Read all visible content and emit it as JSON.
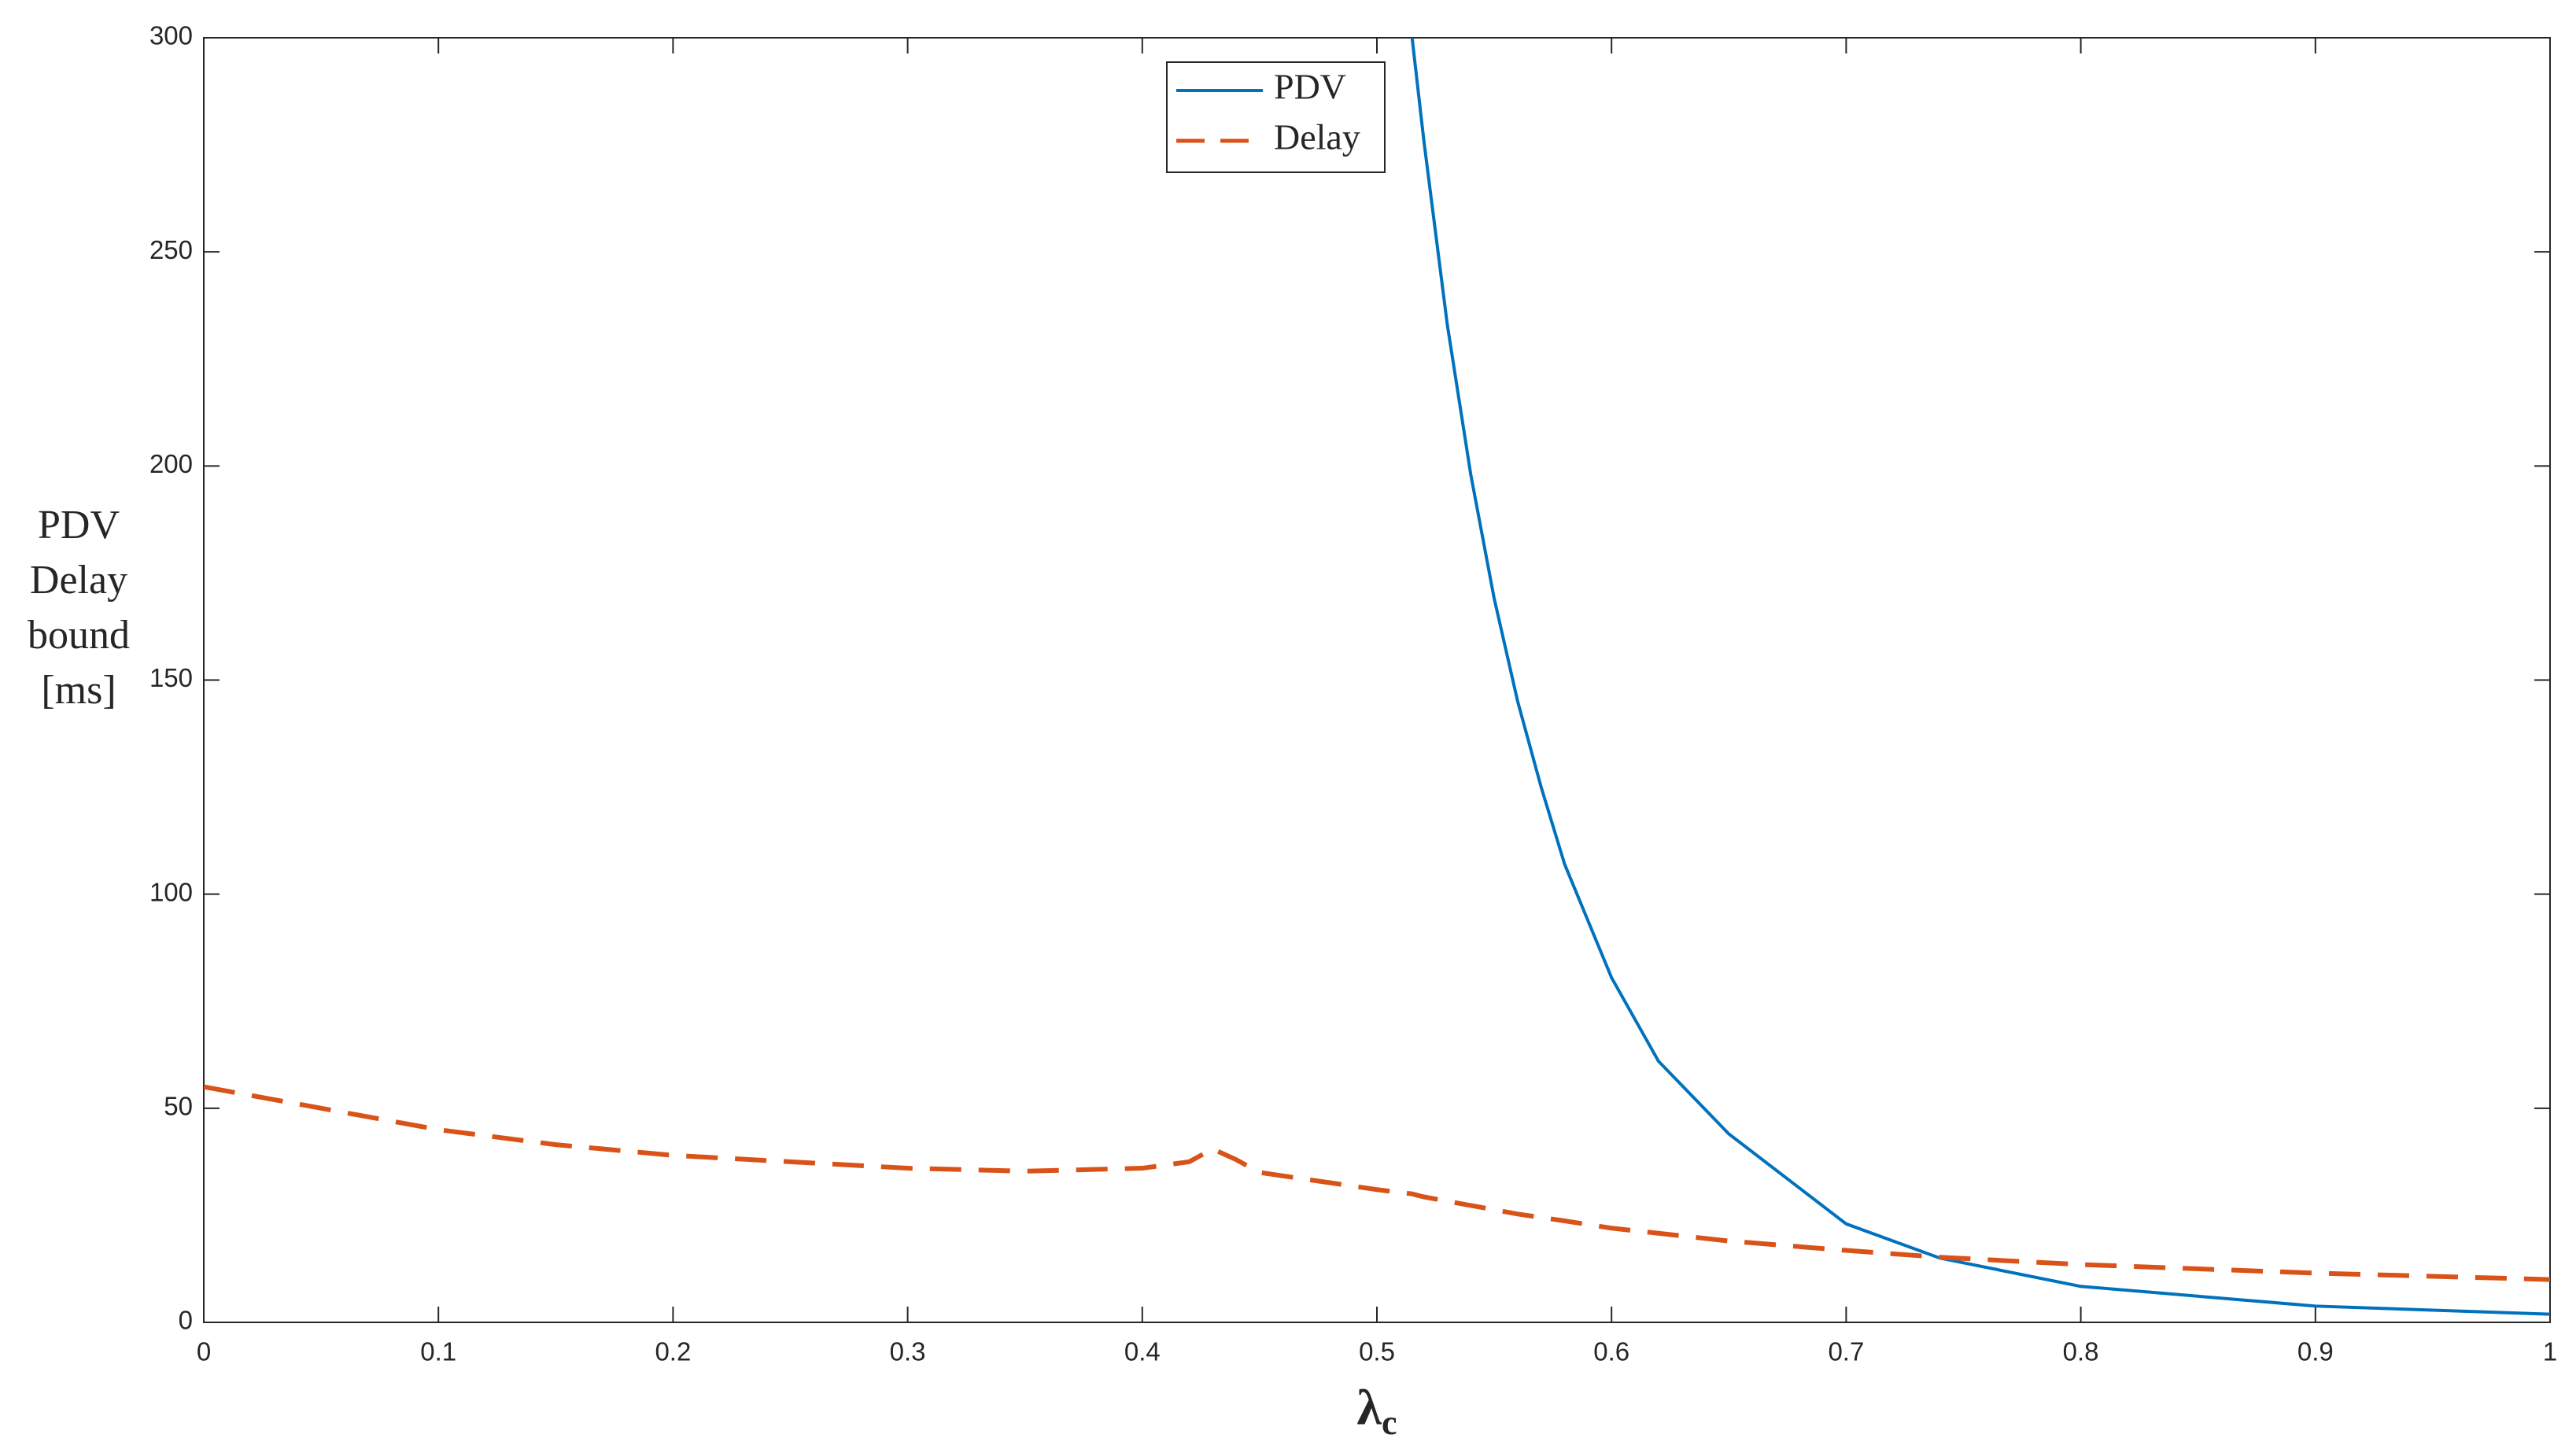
{
  "chart_data": {
    "type": "line",
    "ylabel": [
      "PDV",
      "Delay",
      "bound",
      "[ms]"
    ],
    "xlabel": "λ",
    "xlabel_subscript": "c",
    "x": [
      0,
      0.05,
      0.1,
      0.15,
      0.2,
      0.25,
      0.3,
      0.35,
      0.4,
      0.42,
      0.43,
      0.44,
      0.45,
      0.5,
      0.515,
      0.52,
      0.53,
      0.54,
      0.55,
      0.56,
      0.57,
      0.58,
      0.6,
      0.62,
      0.65,
      0.7,
      0.74,
      0.8,
      0.9,
      1.0
    ],
    "series": [
      {
        "name": "PDV",
        "color": "#0072bd",
        "dash": "solid",
        "values": [
          null,
          null,
          null,
          null,
          null,
          null,
          null,
          null,
          null,
          null,
          null,
          null,
          null,
          null,
          300,
          276,
          233,
          198,
          169,
          145,
          125,
          107,
          80.5,
          61,
          44,
          23,
          15,
          8.4,
          3.8,
          1.9
        ]
      },
      {
        "name": "Delay",
        "color": "#d95319",
        "dash": "dashed",
        "values": [
          55,
          50,
          45,
          41.5,
          39,
          37.5,
          36,
          35.3,
          36,
          37.5,
          40.5,
          38,
          35,
          31,
          30,
          29.3,
          28.3,
          27.3,
          26.3,
          25.3,
          24.5,
          23.7,
          22,
          20.8,
          19,
          16.8,
          15.2,
          13.5,
          11.5,
          10
        ]
      }
    ],
    "xlim": [
      0,
      1
    ],
    "xticks": [
      0,
      0.1,
      0.2,
      0.3,
      0.4,
      0.5,
      0.6,
      0.7,
      0.8,
      0.9,
      1
    ],
    "ylim": [
      0,
      300
    ],
    "yticks": [
      0,
      50,
      100,
      150,
      200,
      250,
      300
    ],
    "grid": false,
    "legend": "top"
  }
}
